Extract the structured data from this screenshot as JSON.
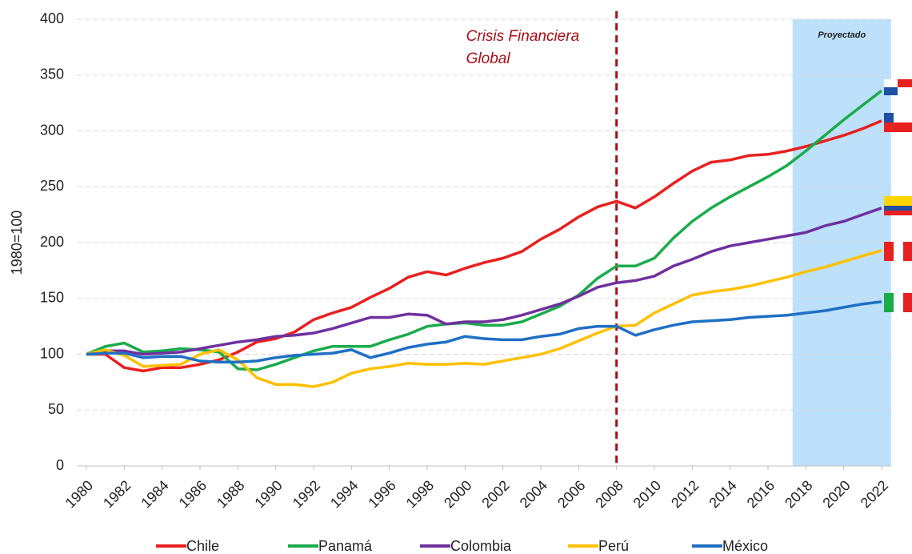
{
  "chart_data": {
    "type": "line",
    "y_label": "1980=100",
    "x": [
      1980,
      1981,
      1982,
      1983,
      1984,
      1985,
      1986,
      1987,
      1988,
      1989,
      1990,
      1991,
      1992,
      1993,
      1994,
      1995,
      1996,
      1997,
      1998,
      1999,
      2000,
      2001,
      2002,
      2003,
      2004,
      2005,
      2006,
      2007,
      2008,
      2009,
      2010,
      2011,
      2012,
      2013,
      2014,
      2015,
      2016,
      2017,
      2018,
      2019,
      2020,
      2021,
      2022
    ],
    "xlim": [
      1980,
      2022
    ],
    "xticks": [
      1980,
      1982,
      1984,
      1986,
      1988,
      1990,
      1992,
      1994,
      1996,
      1998,
      2000,
      2002,
      2004,
      2006,
      2008,
      2010,
      2012,
      2014,
      2016,
      2018,
      2020,
      2022
    ],
    "ylim": [
      0,
      400
    ],
    "yticks": [
      0,
      50,
      100,
      150,
      200,
      250,
      300,
      350,
      400
    ],
    "grid": true,
    "annotation": {
      "text": [
        "Crisis Financiera",
        "Global"
      ],
      "x": 2008,
      "color": "#a50f15"
    },
    "shade": {
      "label": "Proyectado",
      "xlim": [
        2017.3,
        2022.5
      ],
      "color": "#bde0fb"
    },
    "series": [
      {
        "name": "Chile",
        "color": "#e8201f",
        "values": [
          100,
          100,
          88,
          85,
          88,
          88,
          91,
          95,
          102,
          111,
          114,
          120,
          131,
          137,
          142,
          151,
          159,
          169,
          174,
          171,
          177,
          182,
          186,
          192,
          203,
          212,
          223,
          232,
          237,
          231,
          241,
          253,
          264,
          272,
          274,
          278,
          279,
          282,
          286,
          291,
          296,
          302,
          309
        ]
      },
      {
        "name": "Panamá",
        "color": "#1aab4b",
        "values": [
          100,
          107,
          110,
          102,
          103,
          105,
          104,
          102,
          87,
          86,
          91,
          97,
          103,
          107,
          107,
          107,
          113,
          118,
          125,
          127,
          128,
          126,
          126,
          129,
          136,
          143,
          153,
          168,
          179,
          179,
          186,
          204,
          219,
          231,
          241,
          250,
          259,
          269,
          282,
          296,
          310,
          323,
          336
        ]
      },
      {
        "name": "Colombia",
        "color": "#7030a0",
        "values": [
          100,
          103,
          103,
          100,
          101,
          102,
          105,
          108,
          111,
          113,
          116,
          117,
          119,
          123,
          128,
          133,
          133,
          136,
          135,
          127,
          129,
          129,
          131,
          135,
          140,
          145,
          152,
          160,
          164,
          166,
          170,
          179,
          185,
          192,
          197,
          200,
          203,
          206,
          209,
          215,
          219,
          225,
          231
        ]
      },
      {
        "name": "Perú",
        "color": "#ffc000",
        "values": [
          100,
          104,
          99,
          89,
          90,
          91,
          100,
          104,
          95,
          79,
          73,
          73,
          71,
          75,
          83,
          87,
          89,
          92,
          91,
          91,
          92,
          91,
          94,
          97,
          100,
          105,
          112,
          119,
          125,
          126,
          137,
          145,
          153,
          156,
          158,
          161,
          165,
          169,
          174,
          178,
          183,
          188,
          193
        ]
      },
      {
        "name": "México",
        "color": "#1f6fc4",
        "values": [
          100,
          101,
          101,
          97,
          98,
          98,
          94,
          93,
          93,
          94,
          97,
          99,
          100,
          101,
          104,
          97,
          101,
          106,
          109,
          111,
          116,
          114,
          113,
          113,
          116,
          118,
          123,
          125,
          125,
          117,
          122,
          126,
          129,
          130,
          131,
          133,
          134,
          135,
          137,
          139,
          142,
          145,
          147
        ]
      }
    ]
  }
}
